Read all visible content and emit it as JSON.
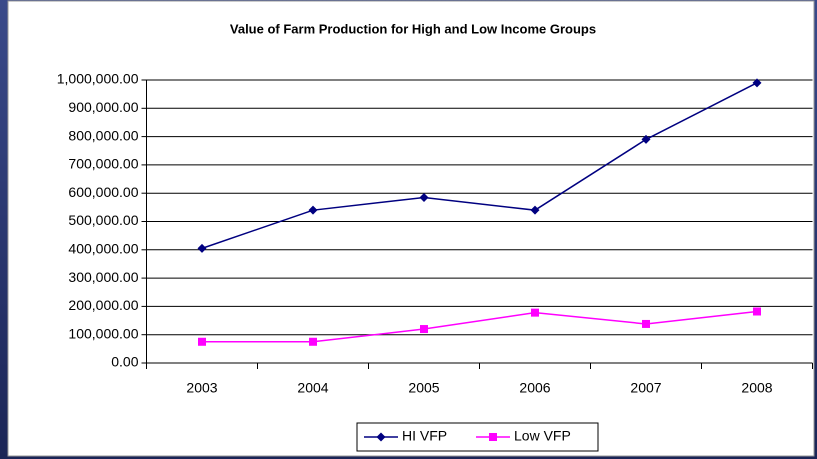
{
  "chart_data": {
    "type": "line",
    "title": "Value of Farm Production for High and Low Income Groups",
    "categories": [
      "2003",
      "2004",
      "2005",
      "2006",
      "2007",
      "2008"
    ],
    "series": [
      {
        "name": "HI VFP",
        "color": "#000080",
        "marker": "diamond",
        "values": [
          405000,
          540000,
          585000,
          540000,
          790000,
          990000
        ]
      },
      {
        "name": "Low VFP",
        "color": "#ff00ff",
        "marker": "square",
        "values": [
          75000,
          75000,
          120000,
          178000,
          138000,
          182000
        ]
      }
    ],
    "ylim": [
      0,
      1000000
    ],
    "yticks": [
      {
        "value": 0,
        "label": "0.00"
      },
      {
        "value": 100000,
        "label": "100,000.00"
      },
      {
        "value": 200000,
        "label": "200,000.00"
      },
      {
        "value": 300000,
        "label": "300,000.00"
      },
      {
        "value": 400000,
        "label": "400,000.00"
      },
      {
        "value": 500000,
        "label": "500,000.00"
      },
      {
        "value": 600000,
        "label": "600,000.00"
      },
      {
        "value": 700000,
        "label": "700,000.00"
      },
      {
        "value": 800000,
        "label": "800,000.00"
      },
      {
        "value": 900000,
        "label": "900,000.00"
      },
      {
        "value": 1000000,
        "label": "1,000,000.00"
      }
    ],
    "grid": true,
    "legend": "bottom"
  }
}
